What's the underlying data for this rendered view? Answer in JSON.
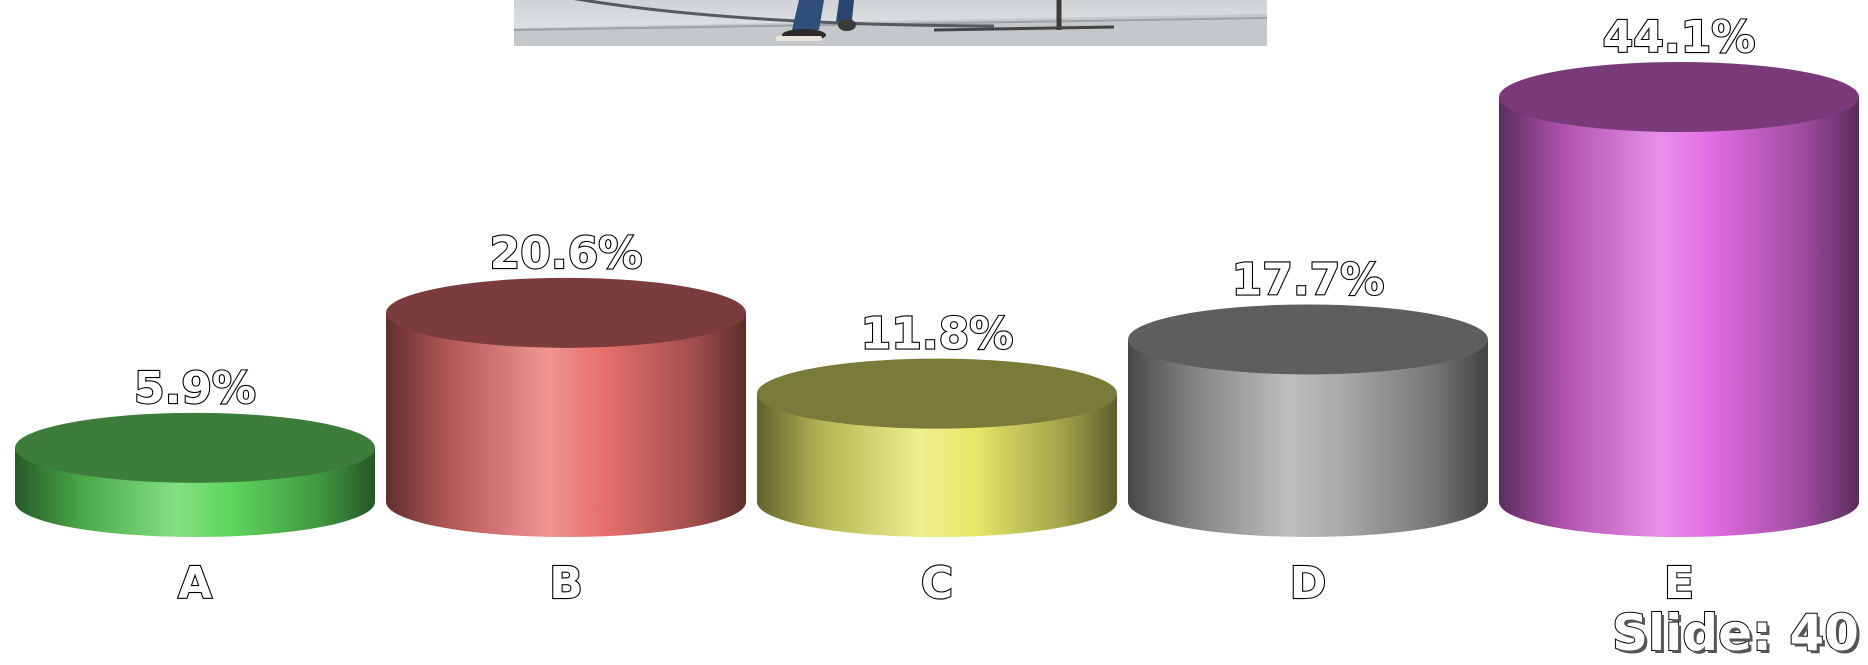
{
  "chart_data": {
    "type": "bar",
    "style": "3d-cylinder",
    "categories": [
      "A",
      "B",
      "C",
      "D",
      "E"
    ],
    "values": [
      5.9,
      20.6,
      11.8,
      17.7,
      44.1
    ],
    "data_labels": [
      "5.9%",
      "20.6%",
      "11.8%",
      "17.7%",
      "44.1%"
    ],
    "colors": [
      "#5cd65c",
      "#e8716f",
      "#e8e86a",
      "#a8a8a8",
      "#e06be0"
    ],
    "top_colors": [
      "#3c7d3c",
      "#7a3c3c",
      "#7a7a3a",
      "#5e5e5e",
      "#7a3a7a"
    ],
    "title": "",
    "xlabel": "",
    "ylabel": "",
    "ylim": [
      0,
      44.1
    ],
    "grid": false,
    "legend": "none"
  },
  "footer": {
    "slide_label": "Slide: 40"
  },
  "image": {
    "description_icon": "skateboard-photo"
  }
}
